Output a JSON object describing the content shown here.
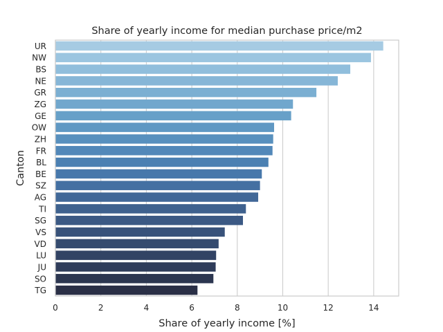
{
  "chart_data": {
    "type": "bar",
    "orientation": "horizontal",
    "title": "Share of yearly income for median purchase price/m2",
    "xlabel": "Share of yearly income [%]",
    "ylabel": "Canton",
    "xlim": [
      0,
      15.1
    ],
    "xticks": [
      0,
      2,
      4,
      6,
      8,
      10,
      12,
      14
    ],
    "grid": true,
    "categories": [
      "UR",
      "NW",
      "BS",
      "NE",
      "GR",
      "ZG",
      "GE",
      "OW",
      "ZH",
      "FR",
      "BL",
      "BE",
      "SZ",
      "AG",
      "TI",
      "SG",
      "VS",
      "VD",
      "LU",
      "JU",
      "SO",
      "TG"
    ],
    "values": [
      14.42,
      13.88,
      12.97,
      12.42,
      11.48,
      10.45,
      10.37,
      9.62,
      9.58,
      9.55,
      9.37,
      9.08,
      9.0,
      8.92,
      8.38,
      8.25,
      7.45,
      7.18,
      7.07,
      7.05,
      6.95,
      6.25
    ],
    "colors": [
      "#a6cbe3",
      "#9bc5e0",
      "#90bedc",
      "#86b6d7",
      "#7bafd2",
      "#71a7cd",
      "#67a0c8",
      "#5f98c3",
      "#5890be",
      "#5288b9",
      "#4b80b2",
      "#4778ab",
      "#4470a2",
      "#416898",
      "#3e618e",
      "#3b5984",
      "#38527a",
      "#354b6f",
      "#324364",
      "#2f3c5a",
      "#2c3650",
      "#2a2f46"
    ]
  }
}
